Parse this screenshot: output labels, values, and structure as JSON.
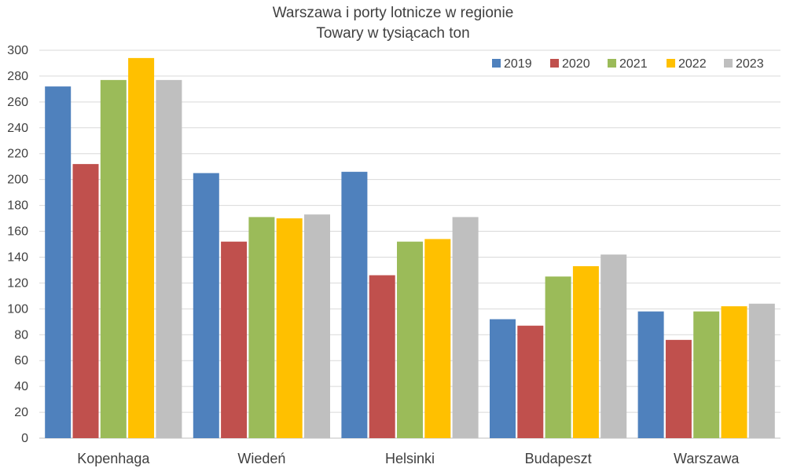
{
  "chart_data": {
    "type": "bar",
    "title": "Warszawa i porty lotnicze w regionie",
    "subtitle": "Towary w tysiącach ton",
    "categories": [
      "Kopenhaga",
      "Wiedeń",
      "Helsinki",
      "Budapeszt",
      "Warszawa"
    ],
    "series": [
      {
        "name": "2019",
        "color": "#4f81bd",
        "values": [
          272,
          205,
          206,
          92,
          98
        ]
      },
      {
        "name": "2020",
        "color": "#c0504d",
        "values": [
          212,
          152,
          126,
          87,
          76
        ]
      },
      {
        "name": "2021",
        "color": "#9bbb59",
        "values": [
          277,
          171,
          152,
          125,
          98
        ]
      },
      {
        "name": "2022",
        "color": "#ffc000",
        "values": [
          294,
          170,
          154,
          133,
          102
        ]
      },
      {
        "name": "2023",
        "color": "#bfbfbf",
        "values": [
          277,
          173,
          171,
          142,
          104
        ]
      }
    ],
    "yticks": [
      "0",
      "20",
      "40",
      "60",
      "80",
      "100",
      "120",
      "140",
      "160",
      "180",
      "200",
      "220",
      "240",
      "260",
      "280",
      "300"
    ],
    "ylim": [
      0,
      300
    ],
    "grid": true,
    "legend_position": "top-right"
  }
}
